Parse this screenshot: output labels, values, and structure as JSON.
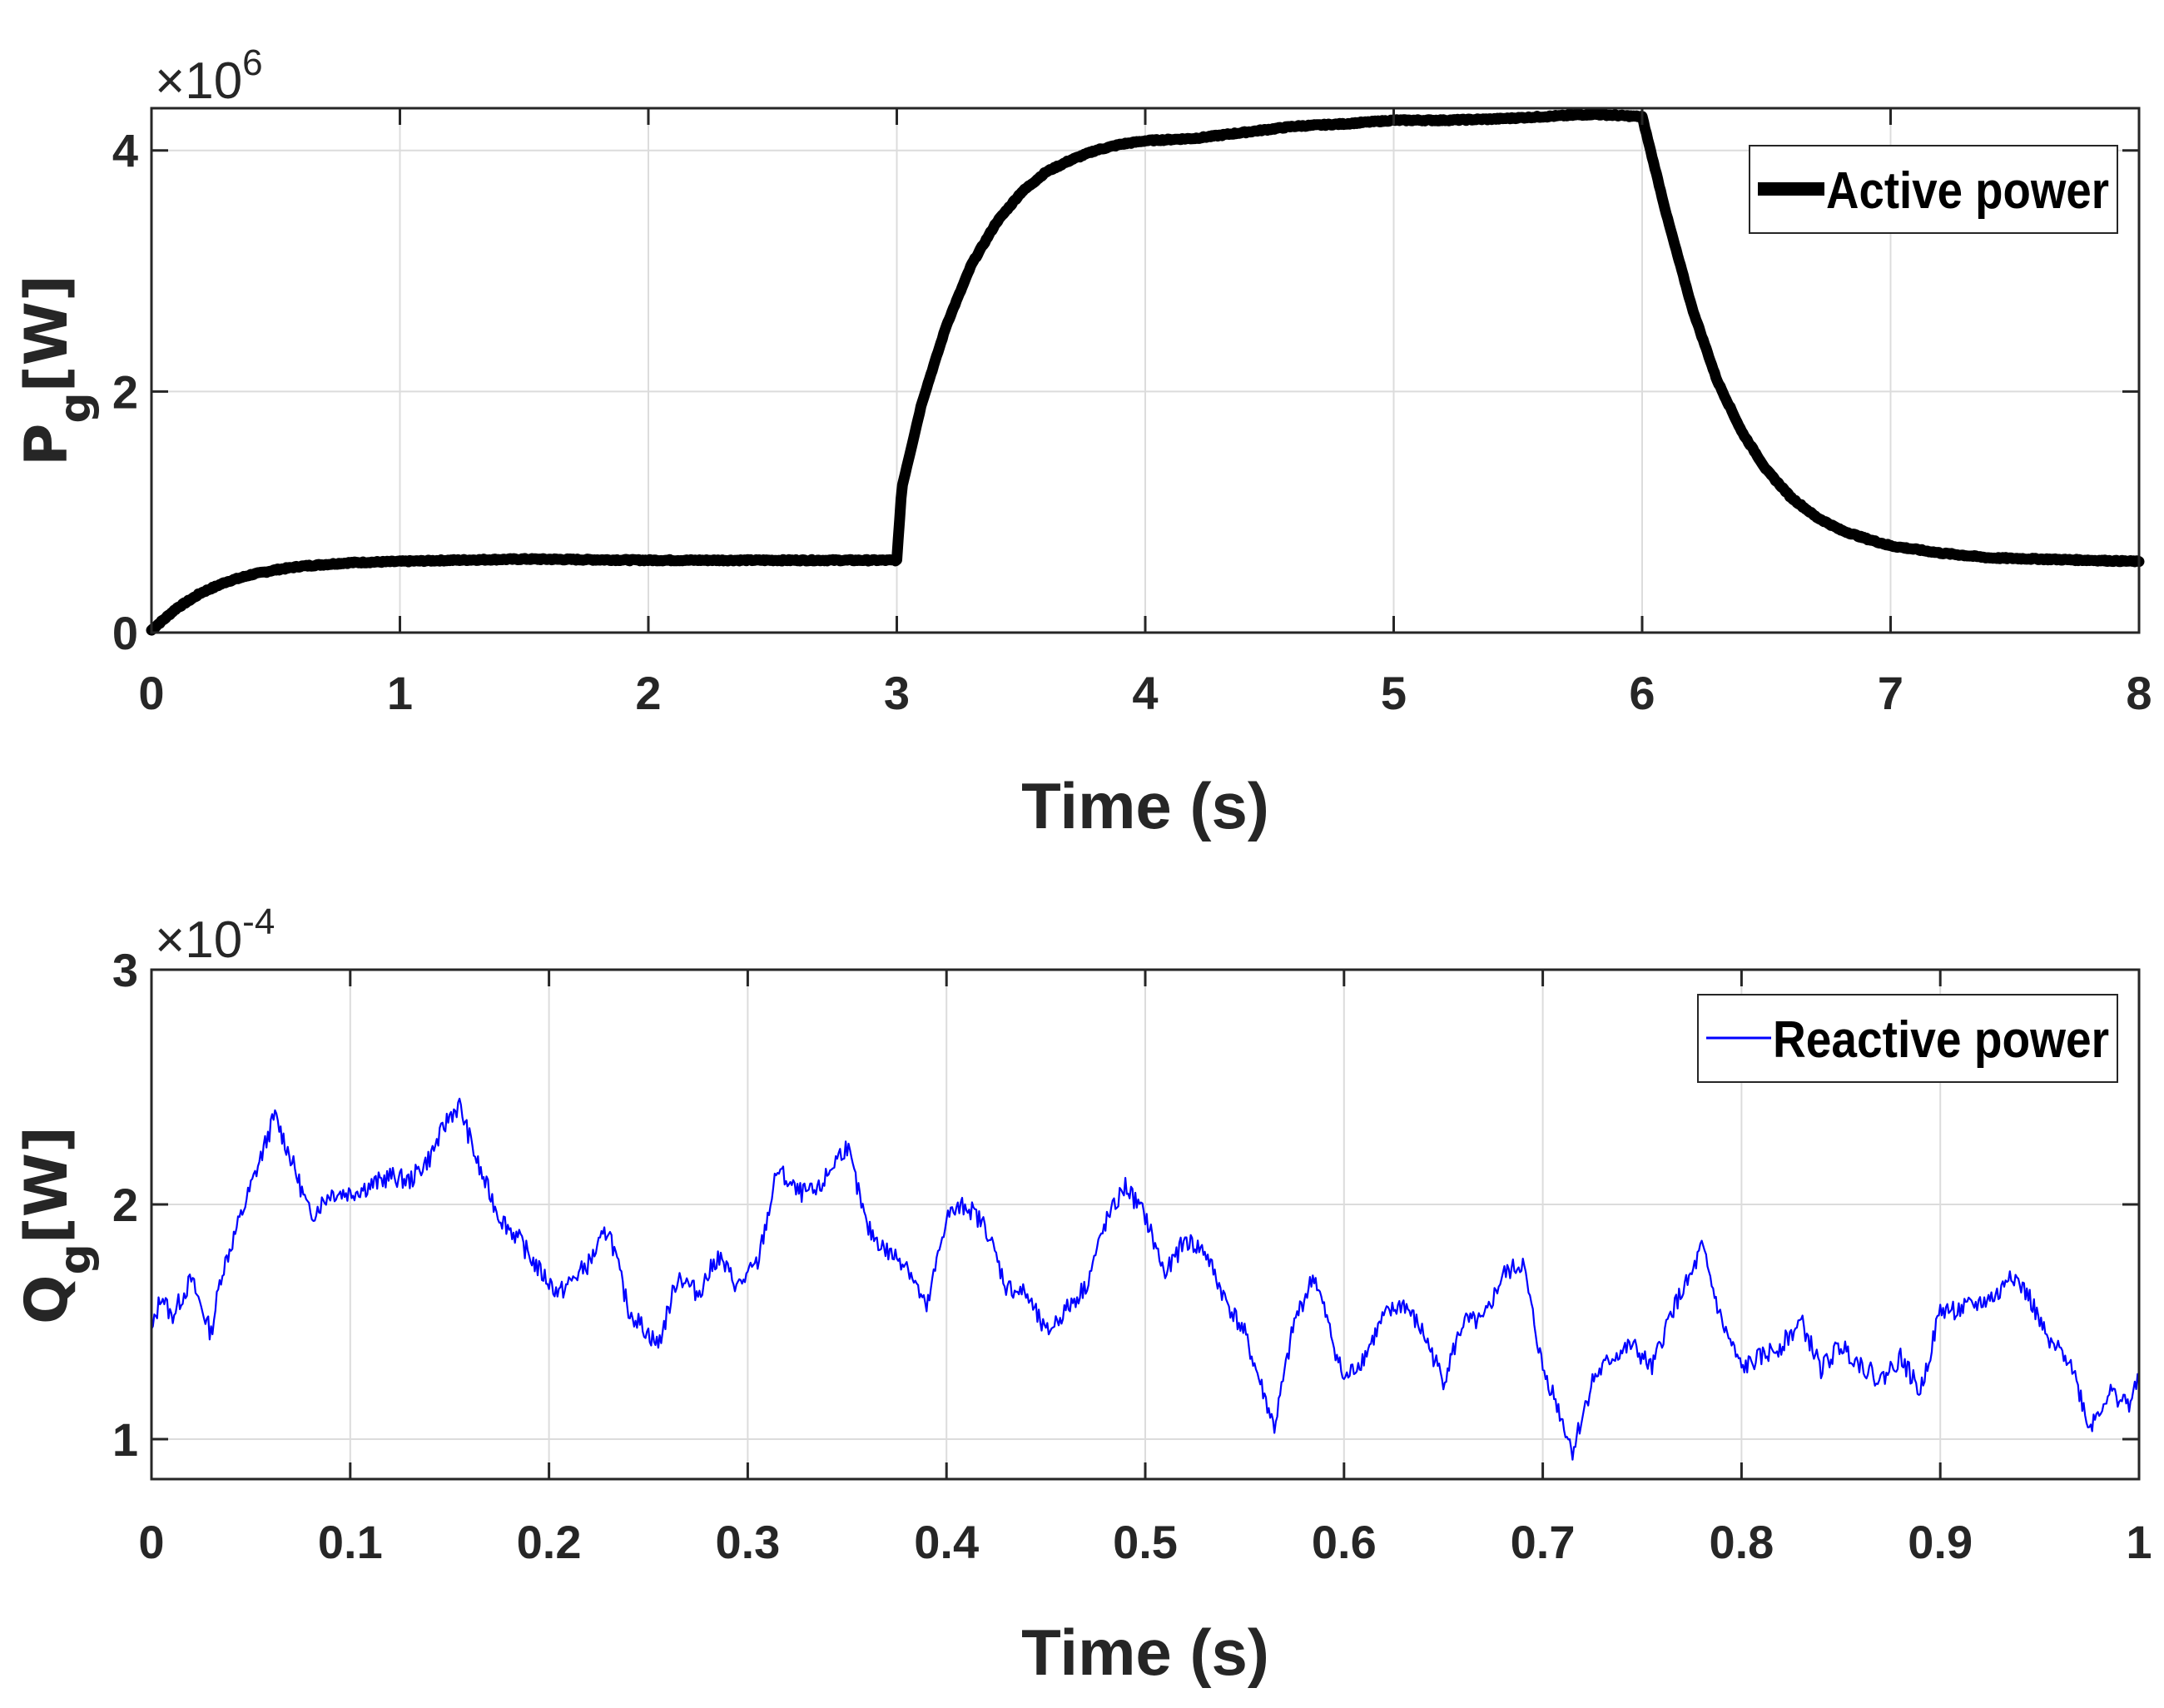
{
  "chart_data": [
    {
      "type": "line",
      "xlabel": "Time (s)",
      "ylabel": "P",
      "ylabel_sub": "g",
      "ylabel_unit": "[W]",
      "y_exponent_base": "×10",
      "y_exponent": "6",
      "xlim": [
        0,
        8
      ],
      "ylim": [
        0,
        4.35
      ],
      "xticks": [
        0,
        1,
        2,
        3,
        4,
        5,
        6,
        7,
        8
      ],
      "xtick_labels": [
        "0",
        "1",
        "2",
        "3",
        "4",
        "5",
        "6",
        "7",
        "8"
      ],
      "yticks": [
        0,
        2,
        4
      ],
      "ytick_labels": [
        "0",
        "2",
        "4"
      ],
      "grid": true,
      "legend_position": "top-right",
      "series": [
        {
          "name": "Active power",
          "color": "#000000",
          "x": [
            0,
            0.1,
            0.2,
            0.3,
            0.4,
            0.5,
            0.6,
            0.8,
            1.0,
            1.2,
            1.5,
            2.0,
            2.5,
            3.0,
            3.02,
            3.1,
            3.2,
            3.3,
            3.4,
            3.5,
            3.6,
            3.7,
            3.8,
            3.9,
            4.0,
            4.2,
            4.4,
            4.6,
            4.8,
            5.0,
            5.2,
            5.4,
            5.6,
            5.8,
            6.0,
            6.1,
            6.2,
            6.3,
            6.4,
            6.5,
            6.6,
            6.7,
            6.8,
            6.9,
            7.0,
            7.2,
            7.4,
            7.6,
            7.8,
            8.0
          ],
          "values": [
            0.02,
            0.2,
            0.33,
            0.42,
            0.48,
            0.52,
            0.55,
            0.58,
            0.59,
            0.6,
            0.61,
            0.6,
            0.6,
            0.6,
            1.2,
            1.9,
            2.55,
            3.05,
            3.4,
            3.65,
            3.82,
            3.92,
            4.0,
            4.05,
            4.08,
            4.1,
            4.15,
            4.2,
            4.22,
            4.25,
            4.25,
            4.26,
            4.28,
            4.3,
            4.28,
            3.45,
            2.7,
            2.1,
            1.67,
            1.35,
            1.12,
            0.96,
            0.85,
            0.78,
            0.72,
            0.66,
            0.62,
            0.61,
            0.6,
            0.59
          ]
        }
      ]
    },
    {
      "type": "line",
      "xlabel": "Time (s)",
      "ylabel": "Q",
      "ylabel_sub": "g",
      "ylabel_unit": "[W]",
      "y_exponent_base": "×10",
      "y_exponent": "-4",
      "xlim": [
        0,
        1
      ],
      "ylim": [
        0.83,
        3.0
      ],
      "xticks": [
        0,
        0.1,
        0.2,
        0.3,
        0.4,
        0.5,
        0.6,
        0.7,
        0.8,
        0.9,
        1.0
      ],
      "xtick_labels": [
        "0",
        "0.1",
        "0.2",
        "0.3",
        "0.4",
        "0.5",
        "0.6",
        "0.7",
        "0.8",
        "0.9",
        "1"
      ],
      "yticks": [
        1,
        2,
        3
      ],
      "ytick_labels": [
        "1",
        "2",
        "3"
      ],
      "grid": true,
      "legend_position": "top-right",
      "series": [
        {
          "name": "Reactive power",
          "color": "#0000ff",
          "x": [
            0,
            0.005,
            0.01,
            0.02,
            0.03,
            0.035,
            0.045,
            0.055,
            0.062,
            0.07,
            0.08,
            0.09,
            0.1,
            0.11,
            0.12,
            0.13,
            0.14,
            0.15,
            0.155,
            0.165,
            0.175,
            0.185,
            0.195,
            0.205,
            0.22,
            0.23,
            0.24,
            0.255,
            0.265,
            0.275,
            0.285,
            0.295,
            0.305,
            0.315,
            0.325,
            0.335,
            0.345,
            0.35,
            0.36,
            0.37,
            0.38,
            0.39,
            0.4,
            0.41,
            0.42,
            0.43,
            0.44,
            0.45,
            0.46,
            0.47,
            0.48,
            0.49,
            0.5,
            0.51,
            0.52,
            0.53,
            0.54,
            0.55,
            0.565,
            0.575,
            0.585,
            0.595,
            0.6,
            0.61,
            0.62,
            0.63,
            0.64,
            0.65,
            0.66,
            0.67,
            0.68,
            0.69,
            0.7,
            0.705,
            0.715,
            0.725,
            0.735,
            0.745,
            0.755,
            0.765,
            0.775,
            0.78,
            0.79,
            0.8,
            0.81,
            0.82,
            0.83,
            0.84,
            0.85,
            0.86,
            0.87,
            0.88,
            0.89,
            0.9,
            0.91,
            0.92,
            0.93,
            0.935,
            0.945,
            0.955,
            0.965,
            0.975,
            0.985,
            0.995,
            1.0
          ],
          "values": [
            1.45,
            1.62,
            1.52,
            1.68,
            1.45,
            1.7,
            1.95,
            2.2,
            2.38,
            2.2,
            1.95,
            2.05,
            2.05,
            2.08,
            2.12,
            2.1,
            2.2,
            2.38,
            2.42,
            2.15,
            1.95,
            1.85,
            1.72,
            1.62,
            1.75,
            1.9,
            1.55,
            1.4,
            1.7,
            1.62,
            1.78,
            1.65,
            1.75,
            2.15,
            2.05,
            2.05,
            2.2,
            2.25,
            1.9,
            1.8,
            1.75,
            1.55,
            1.95,
            2.0,
            1.9,
            1.65,
            1.62,
            1.45,
            1.55,
            1.65,
            1.92,
            2.08,
            1.95,
            1.7,
            1.85,
            1.8,
            1.6,
            1.45,
            1.05,
            1.5,
            1.7,
            1.4,
            1.25,
            1.35,
            1.52,
            1.58,
            1.45,
            1.25,
            1.5,
            1.5,
            1.7,
            1.75,
            1.3,
            1.2,
            0.95,
            1.25,
            1.35,
            1.4,
            1.3,
            1.55,
            1.7,
            1.82,
            1.5,
            1.3,
            1.35,
            1.4,
            1.5,
            1.3,
            1.4,
            1.32,
            1.25,
            1.35,
            1.2,
            1.55,
            1.55,
            1.58,
            1.62,
            1.72,
            1.6,
            1.4,
            1.35,
            1.05,
            1.2,
            1.15,
            1.25
          ]
        }
      ]
    }
  ]
}
